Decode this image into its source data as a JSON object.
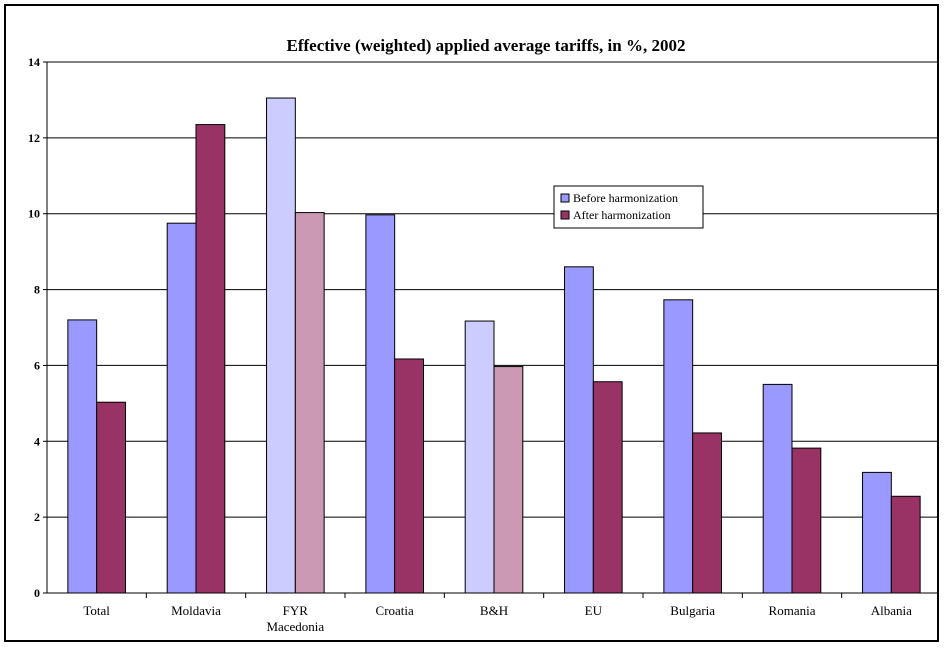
{
  "chart_data": {
    "type": "bar",
    "title": "Effective (weighted) applied average tariffs, in %, 2002",
    "xlabel": "",
    "ylabel": "",
    "ylim": [
      0,
      14
    ],
    "yticks": [
      0,
      2,
      4,
      6,
      8,
      10,
      12,
      14
    ],
    "grid": true,
    "legend_position": "center-right",
    "categories": [
      [
        "Total"
      ],
      [
        "Moldavia"
      ],
      [
        "FYR",
        "Macedonia"
      ],
      [
        "Croatia"
      ],
      [
        "B&H"
      ],
      [
        "EU"
      ],
      [
        "Bulgaria"
      ],
      [
        "Romania"
      ],
      [
        "Albania"
      ]
    ],
    "highlighted_categories": [
      2,
      4
    ],
    "series": [
      {
        "name": "Before harmonization",
        "color": "#9999ff",
        "highlight_color": "#ccccff",
        "values": [
          7.2,
          9.75,
          13.05,
          9.97,
          7.17,
          8.6,
          7.73,
          5.5,
          3.18
        ]
      },
      {
        "name": "After harmonization",
        "color": "#993366",
        "highlight_color": "#cc99b3",
        "values": [
          5.03,
          12.35,
          10.03,
          6.17,
          5.97,
          5.57,
          4.22,
          3.82,
          2.55
        ]
      }
    ]
  }
}
